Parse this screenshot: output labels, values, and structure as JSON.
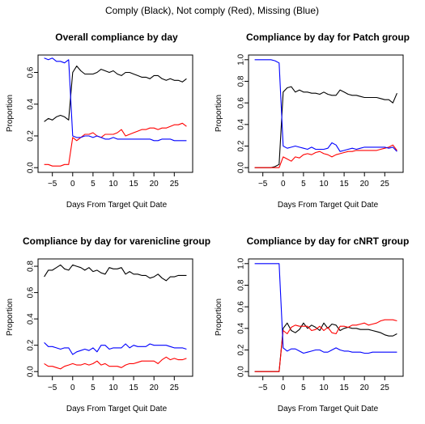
{
  "suptitle": "Comply (Black), Not comply (Red), Missing (Blue)",
  "colors": {
    "comply": "#000000",
    "not_comply": "#ff0000",
    "missing": "#0000ff"
  },
  "chart_data": [
    {
      "type": "line",
      "title": "Overall compliance by day",
      "xlabel": "Days From Target Quit Date",
      "ylabel": "Proportion",
      "xlim": [
        -7,
        28
      ],
      "ylim": [
        0,
        0.68
      ],
      "xticks": [
        -5,
        0,
        5,
        10,
        15,
        20,
        25
      ],
      "yticks": [
        0.0,
        0.2,
        0.4,
        0.6
      ],
      "ytick_labels": [
        "0.0",
        "0.2",
        "0.4",
        "0.6"
      ],
      "grid": false,
      "x": [
        -7,
        -6,
        -5,
        -4,
        -3,
        -2,
        -1,
        0,
        1,
        2,
        3,
        4,
        5,
        6,
        7,
        8,
        9,
        10,
        11,
        12,
        13,
        14,
        15,
        16,
        17,
        18,
        19,
        20,
        21,
        22,
        23,
        24,
        25,
        26,
        27,
        28
      ],
      "series": [
        {
          "color": "#000000",
          "values": [
            0.29,
            0.31,
            0.3,
            0.32,
            0.33,
            0.32,
            0.3,
            0.6,
            0.64,
            0.61,
            0.59,
            0.59,
            0.59,
            0.6,
            0.62,
            0.61,
            0.6,
            0.61,
            0.59,
            0.58,
            0.6,
            0.6,
            0.59,
            0.58,
            0.57,
            0.57,
            0.56,
            0.58,
            0.58,
            0.56,
            0.55,
            0.56,
            0.55,
            0.55,
            0.54,
            0.56
          ]
        },
        {
          "color": "#ff0000",
          "values": [
            0.02,
            0.02,
            0.01,
            0.01,
            0.01,
            0.02,
            0.02,
            0.19,
            0.17,
            0.19,
            0.21,
            0.21,
            0.22,
            0.2,
            0.19,
            0.21,
            0.21,
            0.21,
            0.22,
            0.24,
            0.2,
            0.21,
            0.22,
            0.23,
            0.24,
            0.24,
            0.25,
            0.25,
            0.24,
            0.25,
            0.25,
            0.26,
            0.27,
            0.27,
            0.28,
            0.26
          ]
        },
        {
          "color": "#0000ff",
          "values": [
            0.69,
            0.68,
            0.69,
            0.67,
            0.67,
            0.66,
            0.68,
            0.2,
            0.19,
            0.19,
            0.2,
            0.2,
            0.19,
            0.2,
            0.19,
            0.18,
            0.18,
            0.19,
            0.18,
            0.18,
            0.18,
            0.18,
            0.18,
            0.18,
            0.18,
            0.18,
            0.18,
            0.17,
            0.17,
            0.18,
            0.18,
            0.18,
            0.17,
            0.17,
            0.17,
            0.17
          ]
        }
      ]
    },
    {
      "type": "line",
      "title": "Compliance by day for Patch group",
      "xlabel": "Days From Target Quit Date",
      "ylabel": "Proportion",
      "xlim": [
        -7,
        28
      ],
      "ylim": [
        0,
        1.0
      ],
      "xticks": [
        -5,
        0,
        5,
        10,
        15,
        20,
        25
      ],
      "yticks": [
        0.0,
        0.2,
        0.4,
        0.6,
        0.8,
        1.0
      ],
      "ytick_labels": [
        "0.0",
        "0.2",
        "0.4",
        "0.6",
        "0.8",
        "1.0"
      ],
      "grid": false,
      "x": [
        -7,
        -6,
        -5,
        -4,
        -3,
        -2,
        -1,
        0,
        1,
        2,
        3,
        4,
        5,
        6,
        7,
        8,
        9,
        10,
        11,
        12,
        13,
        14,
        15,
        16,
        17,
        18,
        19,
        20,
        21,
        22,
        23,
        24,
        25,
        26,
        27,
        28
      ],
      "series": [
        {
          "color": "#000000",
          "values": [
            0.0,
            0.0,
            0.0,
            0.0,
            0.0,
            0.01,
            0.03,
            0.7,
            0.74,
            0.75,
            0.7,
            0.72,
            0.7,
            0.7,
            0.69,
            0.69,
            0.68,
            0.7,
            0.68,
            0.67,
            0.67,
            0.72,
            0.7,
            0.68,
            0.67,
            0.67,
            0.66,
            0.65,
            0.65,
            0.65,
            0.65,
            0.64,
            0.63,
            0.63,
            0.6,
            0.69
          ]
        },
        {
          "color": "#ff0000",
          "values": [
            0.0,
            0.0,
            0.0,
            0.0,
            0.0,
            0.0,
            0.0,
            0.1,
            0.08,
            0.06,
            0.1,
            0.09,
            0.12,
            0.13,
            0.12,
            0.14,
            0.15,
            0.13,
            0.12,
            0.1,
            0.12,
            0.13,
            0.14,
            0.15,
            0.15,
            0.16,
            0.16,
            0.16,
            0.16,
            0.16,
            0.16,
            0.17,
            0.18,
            0.19,
            0.21,
            0.16
          ]
        },
        {
          "color": "#0000ff",
          "values": [
            1.0,
            1.0,
            1.0,
            1.0,
            1.0,
            0.99,
            0.97,
            0.2,
            0.18,
            0.19,
            0.2,
            0.19,
            0.18,
            0.17,
            0.19,
            0.17,
            0.17,
            0.17,
            0.18,
            0.23,
            0.21,
            0.15,
            0.16,
            0.17,
            0.18,
            0.17,
            0.18,
            0.19,
            0.19,
            0.19,
            0.19,
            0.19,
            0.19,
            0.18,
            0.19,
            0.15
          ]
        }
      ]
    },
    {
      "type": "line",
      "title": "Compliance by day for varenicline group",
      "xlabel": "Days From Target Quit Date",
      "ylabel": "Proportion",
      "xlim": [
        -7,
        28
      ],
      "ylim": [
        0,
        0.82
      ],
      "xticks": [
        -5,
        0,
        5,
        10,
        15,
        20,
        25
      ],
      "yticks": [
        0.0,
        0.2,
        0.4,
        0.6,
        0.8
      ],
      "ytick_labels": [
        "0.0",
        "0.2",
        "0.4",
        "0.6",
        "0.8"
      ],
      "grid": false,
      "x": [
        -7,
        -6,
        -5,
        -4,
        -3,
        -2,
        -1,
        0,
        1,
        2,
        3,
        4,
        5,
        6,
        7,
        8,
        9,
        10,
        11,
        12,
        13,
        14,
        15,
        16,
        17,
        18,
        19,
        20,
        21,
        22,
        23,
        24,
        25,
        26,
        27,
        28
      ],
      "series": [
        {
          "color": "#000000",
          "values": [
            0.72,
            0.77,
            0.77,
            0.79,
            0.81,
            0.78,
            0.77,
            0.81,
            0.8,
            0.79,
            0.77,
            0.79,
            0.76,
            0.77,
            0.75,
            0.74,
            0.79,
            0.78,
            0.78,
            0.79,
            0.74,
            0.76,
            0.74,
            0.74,
            0.73,
            0.73,
            0.71,
            0.72,
            0.74,
            0.71,
            0.69,
            0.72,
            0.72,
            0.73,
            0.73,
            0.73
          ]
        },
        {
          "color": "#ff0000",
          "values": [
            0.06,
            0.04,
            0.04,
            0.03,
            0.02,
            0.04,
            0.05,
            0.06,
            0.05,
            0.05,
            0.06,
            0.05,
            0.06,
            0.08,
            0.05,
            0.06,
            0.04,
            0.04,
            0.04,
            0.03,
            0.05,
            0.06,
            0.06,
            0.07,
            0.08,
            0.08,
            0.08,
            0.08,
            0.06,
            0.09,
            0.11,
            0.09,
            0.1,
            0.09,
            0.09,
            0.1
          ]
        },
        {
          "color": "#0000ff",
          "values": [
            0.22,
            0.19,
            0.19,
            0.18,
            0.17,
            0.18,
            0.18,
            0.13,
            0.15,
            0.16,
            0.17,
            0.16,
            0.18,
            0.15,
            0.2,
            0.2,
            0.17,
            0.18,
            0.18,
            0.18,
            0.21,
            0.18,
            0.2,
            0.19,
            0.19,
            0.19,
            0.21,
            0.2,
            0.2,
            0.2,
            0.2,
            0.19,
            0.18,
            0.18,
            0.18,
            0.17
          ]
        }
      ]
    },
    {
      "type": "line",
      "title": "Compliance by day for cNRT group",
      "xlabel": "Days From Target Quit Date",
      "ylabel": "Proportion",
      "xlim": [
        -7,
        28
      ],
      "ylim": [
        0,
        1.0
      ],
      "xticks": [
        -5,
        0,
        5,
        10,
        15,
        20,
        25
      ],
      "yticks": [
        0.0,
        0.2,
        0.4,
        0.6,
        0.8,
        1.0
      ],
      "ytick_labels": [
        "0.0",
        "0.2",
        "0.4",
        "0.6",
        "0.8",
        "1.0"
      ],
      "grid": false,
      "x": [
        -7,
        -6,
        -5,
        -4,
        -3,
        -2,
        -1,
        0,
        1,
        2,
        3,
        4,
        5,
        6,
        7,
        8,
        9,
        10,
        11,
        12,
        13,
        14,
        15,
        16,
        17,
        18,
        19,
        20,
        21,
        22,
        23,
        24,
        25,
        26,
        27,
        28
      ],
      "series": [
        {
          "color": "#000000",
          "values": [
            0.0,
            0.0,
            0.0,
            0.0,
            0.0,
            0.0,
            0.0,
            0.4,
            0.45,
            0.38,
            0.36,
            0.39,
            0.45,
            0.4,
            0.43,
            0.41,
            0.38,
            0.45,
            0.4,
            0.44,
            0.43,
            0.38,
            0.4,
            0.41,
            0.4,
            0.4,
            0.39,
            0.39,
            0.39,
            0.38,
            0.37,
            0.36,
            0.34,
            0.33,
            0.33,
            0.35
          ]
        },
        {
          "color": "#ff0000",
          "values": [
            0.0,
            0.0,
            0.0,
            0.0,
            0.0,
            0.0,
            0.0,
            0.38,
            0.35,
            0.41,
            0.43,
            0.42,
            0.42,
            0.42,
            0.38,
            0.39,
            0.42,
            0.38,
            0.41,
            0.36,
            0.35,
            0.42,
            0.42,
            0.41,
            0.43,
            0.43,
            0.44,
            0.45,
            0.43,
            0.44,
            0.45,
            0.47,
            0.48,
            0.48,
            0.48,
            0.47
          ]
        },
        {
          "color": "#0000ff",
          "values": [
            1.0,
            1.0,
            1.0,
            1.0,
            1.0,
            1.0,
            1.0,
            0.22,
            0.19,
            0.21,
            0.21,
            0.19,
            0.17,
            0.18,
            0.19,
            0.2,
            0.2,
            0.18,
            0.18,
            0.2,
            0.22,
            0.2,
            0.19,
            0.19,
            0.18,
            0.18,
            0.18,
            0.17,
            0.17,
            0.18,
            0.18,
            0.18,
            0.18,
            0.18,
            0.18,
            0.18
          ]
        }
      ]
    }
  ]
}
